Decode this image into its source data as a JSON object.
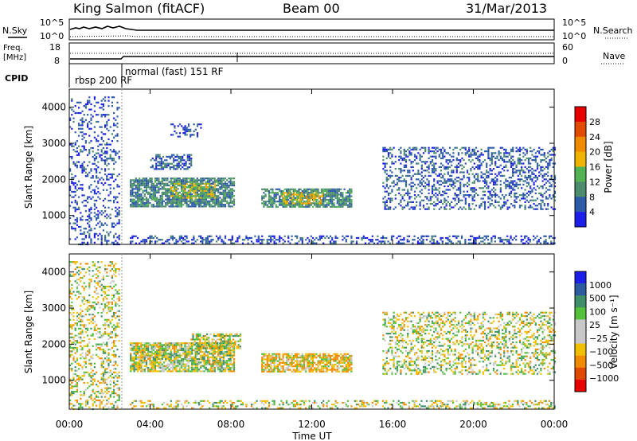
{
  "header": {
    "station": "King Salmon (fitACF)",
    "beam": "Beam 00",
    "date": "31/Mar/2013"
  },
  "time_axis": {
    "label": "Time UT",
    "ticks": [
      "00:00",
      "04:00",
      "08:00",
      "12:00",
      "16:00",
      "20:00",
      "00:00"
    ],
    "range_hours": [
      0,
      24
    ]
  },
  "params": {
    "nsky_label": "N.Sky",
    "nsky_ticks": [
      "10^5",
      "10^0"
    ],
    "nsearch_label": "N.Search",
    "freq_label_1": "Freq.",
    "freq_label_2": "[MHz]",
    "freq_ticks": [
      "18",
      "8"
    ],
    "nave_label": "Nave",
    "nave_ticks": [
      "60",
      "0"
    ],
    "cpid_label": "CPID",
    "cpid_modes": [
      {
        "name": "rbsp 200 RF",
        "start_hour": 0.0,
        "end_hour": 2.5
      },
      {
        "name": "normal (fast) 151 RF",
        "start_hour": 2.5,
        "end_hour": 24.0
      }
    ]
  },
  "colors": {
    "power_scale": [
      "#1e1eea",
      "#2e5ba8",
      "#4c8c6c",
      "#53b253",
      "#f0b400",
      "#f08a00",
      "#e24a00",
      "#e60000"
    ],
    "velocity_scale": [
      "#e60000",
      "#e04a00",
      "#f08a00",
      "#f0c000",
      "#c8c8c8",
      "#c8c8c8",
      "#55c03c",
      "#3e8f6a",
      "#2d5ba0",
      "#1e1eea"
    ],
    "ground_scatter": "#b4b4b4"
  },
  "chart_data": [
    {
      "type": "heatmap",
      "name": "power",
      "ylabel": "Slant Range [km]",
      "yticks": [
        "1000",
        "2000",
        "3000",
        "4000"
      ],
      "ylim": [
        200,
        4500
      ],
      "xlim": [
        0,
        24
      ],
      "colorbar_label": "Power [dB]",
      "colorbar_ticks": [
        "4",
        "8",
        "12",
        "16",
        "20",
        "24",
        "28"
      ],
      "clim": [
        0,
        30
      ],
      "echo_regions": [
        {
          "t_start": 0.0,
          "t_end": 2.5,
          "r_min": 200,
          "r_max": 4300,
          "value": 5,
          "density": 0.25
        },
        {
          "t_start": 3.0,
          "t_end": 8.2,
          "r_min": 1250,
          "r_max": 2050,
          "value": 9,
          "density": 0.8
        },
        {
          "t_start": 5.0,
          "t_end": 7.2,
          "r_min": 1500,
          "r_max": 1900,
          "value": 16,
          "density": 0.55
        },
        {
          "t_start": 4.0,
          "t_end": 6.0,
          "r_min": 2300,
          "r_max": 2700,
          "value": 6,
          "density": 0.5
        },
        {
          "t_start": 5.0,
          "t_end": 6.5,
          "r_min": 3200,
          "r_max": 3550,
          "value": 5,
          "density": 0.35
        },
        {
          "t_start": 9.5,
          "t_end": 14.0,
          "r_min": 1250,
          "r_max": 1750,
          "value": 10,
          "density": 0.75
        },
        {
          "t_start": 10.5,
          "t_end": 12.5,
          "r_min": 1350,
          "r_max": 1650,
          "value": 18,
          "density": 0.5
        },
        {
          "t_start": 15.5,
          "t_end": 24.0,
          "r_min": 1200,
          "r_max": 2900,
          "value": 6,
          "density": 0.35
        },
        {
          "t_start": 3.0,
          "t_end": 24.0,
          "r_min": 250,
          "r_max": 450,
          "value": 5,
          "density": 0.4
        }
      ]
    },
    {
      "type": "heatmap",
      "name": "velocity",
      "ylabel": "Slant Range [km]",
      "yticks": [
        "1000",
        "2000",
        "3000",
        "4000"
      ],
      "ylim": [
        200,
        4500
      ],
      "xlim": [
        0,
        24
      ],
      "colorbar_label": "Velocity [m s⁻¹]",
      "colorbar_ticks": [
        "1000",
        "500",
        "100",
        "25",
        "−25",
        "−100",
        "−500",
        "−1000"
      ],
      "clim": [
        -1000,
        1000
      ],
      "echo_regions": [
        {
          "t_start": 0.0,
          "t_end": 2.5,
          "r_min": 200,
          "r_max": 4300,
          "value": 0,
          "density": 0.3
        },
        {
          "t_start": 3.0,
          "t_end": 8.2,
          "r_min": 1250,
          "r_max": 2050,
          "value": 10,
          "density": 0.8
        },
        {
          "t_start": 6.0,
          "t_end": 8.5,
          "r_min": 1900,
          "r_max": 2300,
          "value": 5,
          "density": 0.6
        },
        {
          "t_start": 9.5,
          "t_end": 14.0,
          "r_min": 1250,
          "r_max": 1750,
          "value": -80,
          "density": 0.75
        },
        {
          "t_start": 15.5,
          "t_end": 24.0,
          "r_min": 1200,
          "r_max": 2900,
          "value": 5,
          "density": 0.35
        },
        {
          "t_start": 3.0,
          "t_end": 24.0,
          "r_min": 250,
          "r_max": 450,
          "value": 5,
          "density": 0.35
        }
      ]
    }
  ]
}
